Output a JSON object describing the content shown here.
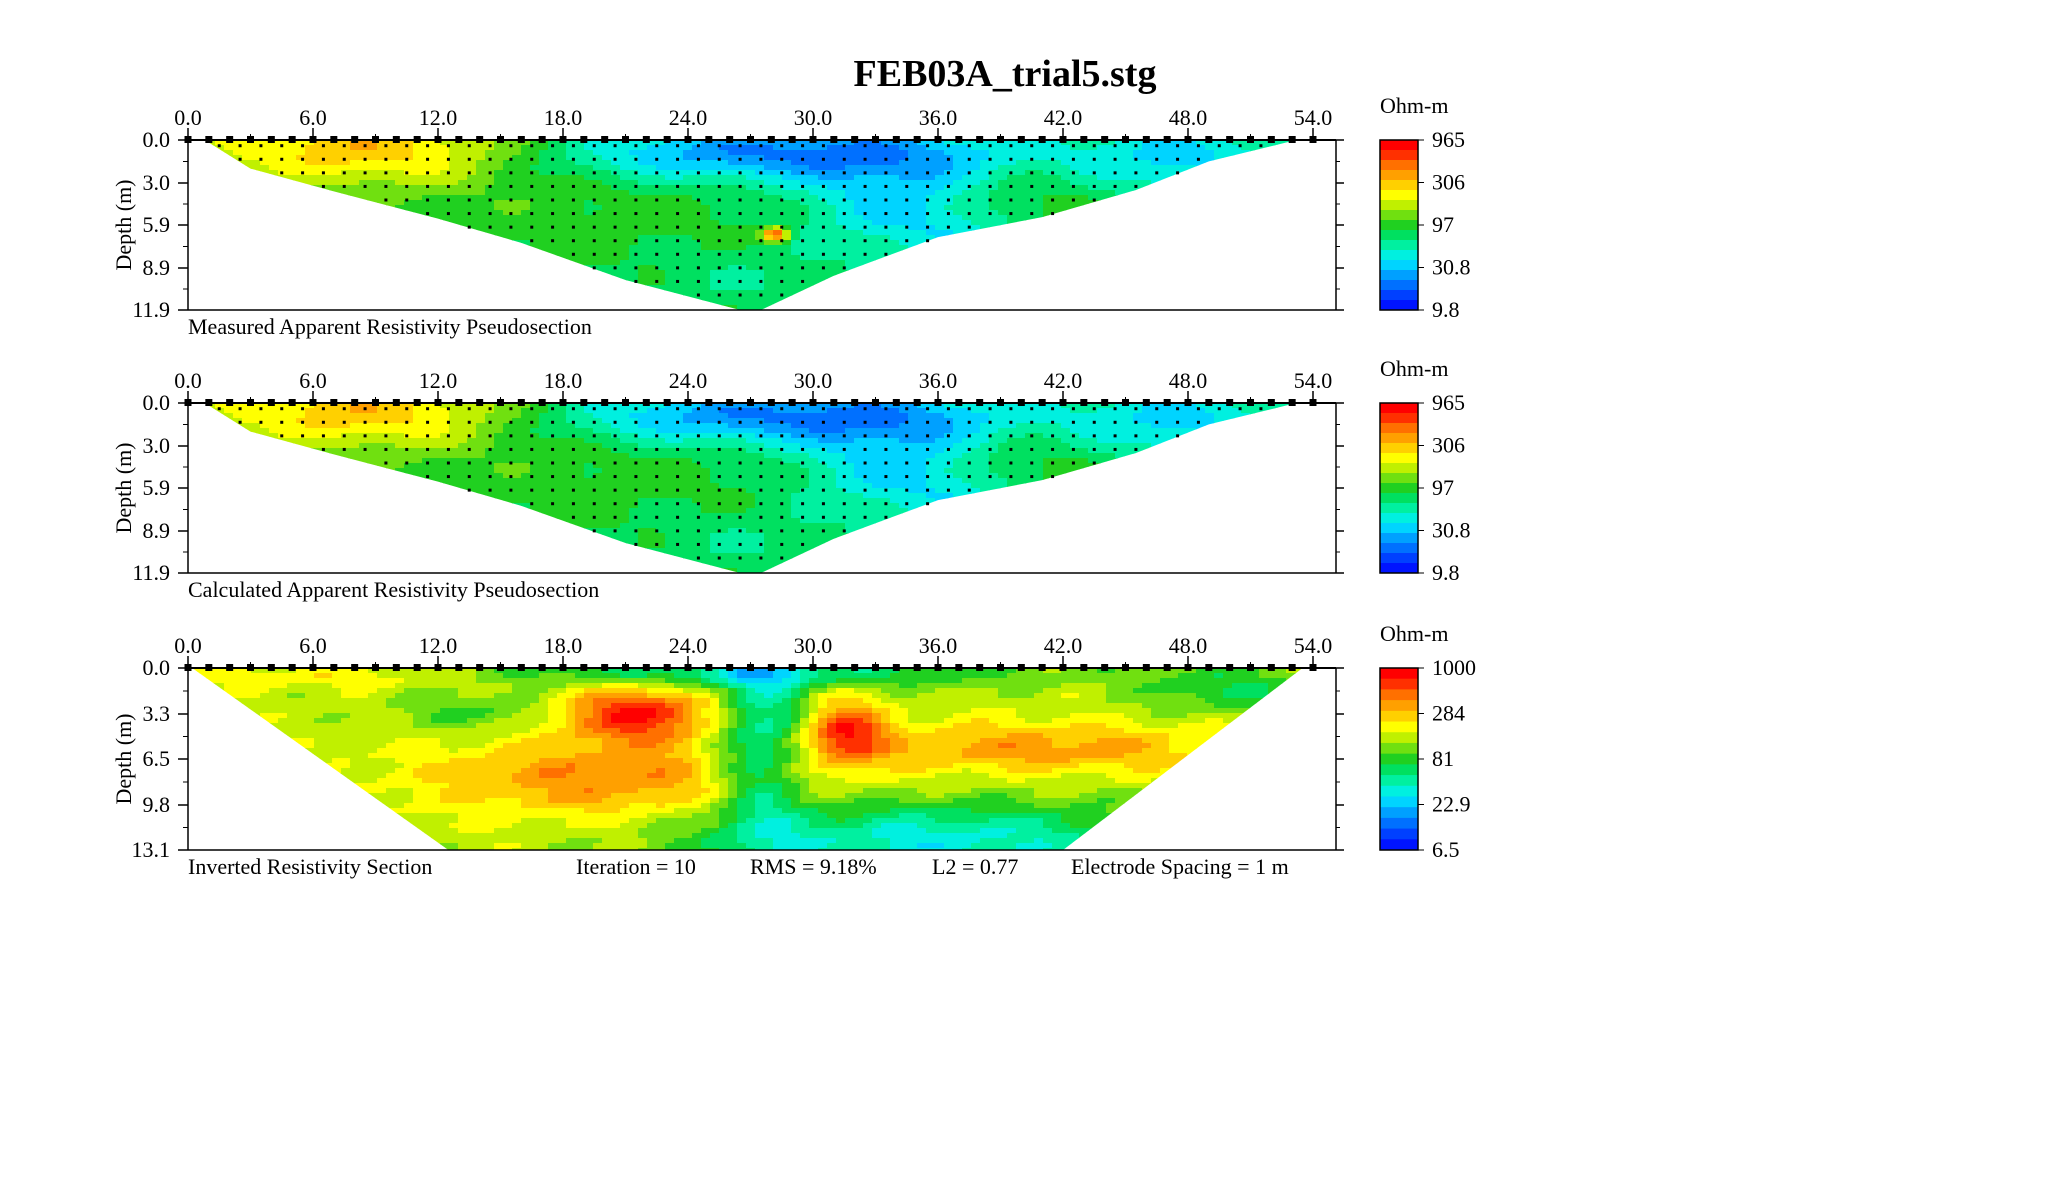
{
  "title": "FEB03A_trial5.stg",
  "colors": {
    "scale": [
      "#0014ff",
      "#0040ff",
      "#0070ff",
      "#00a0ff",
      "#00d4ff",
      "#00f0e0",
      "#00f0a0",
      "#00e060",
      "#20d020",
      "#70e010",
      "#c0f000",
      "#ffff00",
      "#ffd000",
      "#ffa000",
      "#ff7000",
      "#ff3000",
      "#ff0000"
    ],
    "background": "#ffffff",
    "frame": "#000000"
  },
  "chart_data": [
    {
      "type": "heatmap",
      "caption": "Measured Apparent Resistivity Pseudosection",
      "ylabel": "Depth (m)",
      "x_ticks": [
        "0.0",
        "6.0",
        "12.0",
        "18.0",
        "24.0",
        "30.0",
        "36.0",
        "42.0",
        "48.0",
        "54.0"
      ],
      "y_ticks": [
        "0.0",
        "3.0",
        "5.9",
        "8.9",
        "11.9"
      ],
      "xlim": [
        0,
        54
      ],
      "ylim": [
        0,
        11.9
      ],
      "colorbar": {
        "unit": "Ohm-m",
        "labels": [
          "965",
          "306",
          "97",
          "30.8",
          "9.8"
        ]
      },
      "anomaly": "high"
    },
    {
      "type": "heatmap",
      "caption": "Calculated Apparent Resistivity Pseudosection",
      "ylabel": "Depth (m)",
      "x_ticks": [
        "0.0",
        "6.0",
        "12.0",
        "18.0",
        "24.0",
        "30.0",
        "36.0",
        "42.0",
        "48.0",
        "54.0"
      ],
      "y_ticks": [
        "0.0",
        "3.0",
        "5.9",
        "8.9",
        "11.9"
      ],
      "xlim": [
        0,
        54
      ],
      "ylim": [
        0,
        11.9
      ],
      "colorbar": {
        "unit": "Ohm-m",
        "labels": [
          "965",
          "306",
          "97",
          "30.8",
          "9.8"
        ]
      }
    },
    {
      "type": "heatmap",
      "caption": "Inverted Resistivity Section",
      "stats": {
        "iteration": "Iteration = 10",
        "rms": "RMS = 9.18%",
        "l2": "L2 = 0.77",
        "spacing": "Electrode Spacing = 1 m"
      },
      "ylabel": "Depth (m)",
      "x_ticks": [
        "0.0",
        "6.0",
        "12.0",
        "18.0",
        "24.0",
        "30.0",
        "36.0",
        "42.0",
        "48.0",
        "54.0"
      ],
      "y_ticks": [
        "0.0",
        "3.3",
        "6.5",
        "9.8",
        "13.1"
      ],
      "xlim": [
        0,
        54
      ],
      "ylim": [
        0,
        13.1
      ],
      "colorbar": {
        "unit": "Ohm-m",
        "labels": [
          "1000",
          "284",
          "81",
          "22.9",
          "6.5"
        ]
      }
    }
  ]
}
